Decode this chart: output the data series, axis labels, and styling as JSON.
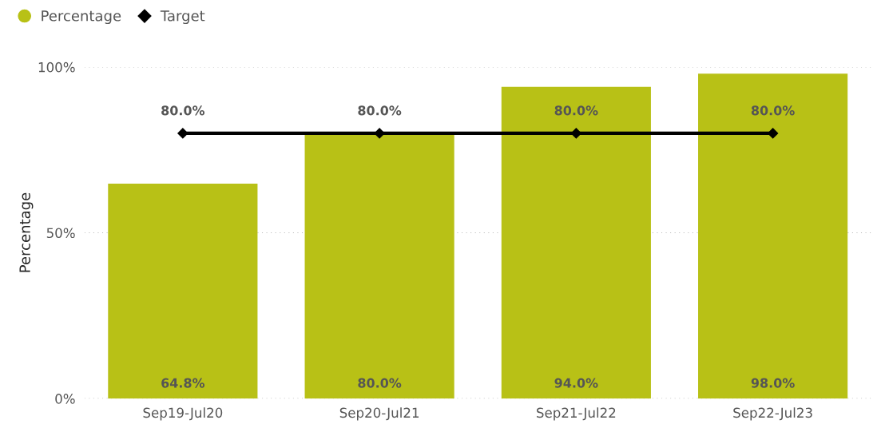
{
  "chart_data": {
    "type": "bar",
    "categories": [
      "Sep19-Jul20",
      "Sep20-Jul21",
      "Sep21-Jul22",
      "Sep22-Jul23"
    ],
    "ylabel": "Percentage",
    "series": [
      {
        "name": "Percentage",
        "color": "#b8c116",
        "values": [
          64.8,
          80.0,
          94.0,
          98.0
        ],
        "value_labels": [
          "64.8%",
          "80.0%",
          "94.0%",
          "98.0%"
        ]
      },
      {
        "name": "Target",
        "type": "line",
        "color": "#000000",
        "marker": "diamond",
        "values": [
          80.0,
          80.0,
          80.0,
          80.0
        ],
        "value_labels": [
          "80.0%",
          "80.0%",
          "80.0%",
          "80.0%"
        ]
      }
    ],
    "ylim": [
      0,
      100
    ],
    "yticks": [
      {
        "value": 0,
        "label": "0%"
      },
      {
        "value": 50,
        "label": "50%"
      },
      {
        "value": 100,
        "label": "100%"
      }
    ],
    "grid": "y",
    "legend": "top left"
  }
}
